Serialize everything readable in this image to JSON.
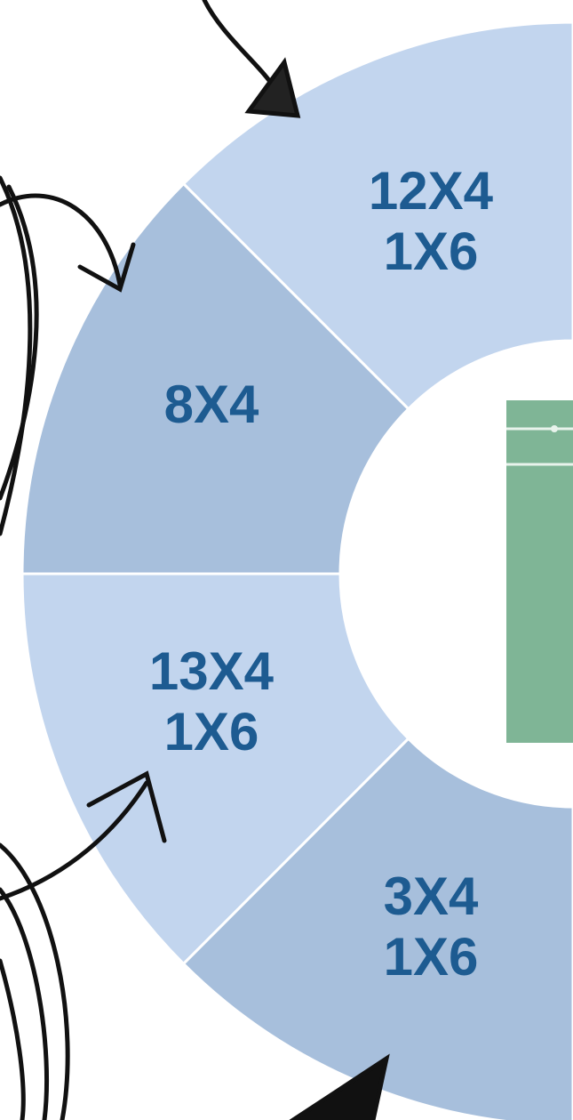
{
  "segments": [
    {
      "lines": [
        "12X4",
        "1X6"
      ]
    },
    {
      "lines": [
        "8X4"
      ]
    },
    {
      "lines": [
        "13X4",
        "1X6"
      ]
    },
    {
      "lines": [
        "3X4",
        "1X6"
      ]
    }
  ]
}
